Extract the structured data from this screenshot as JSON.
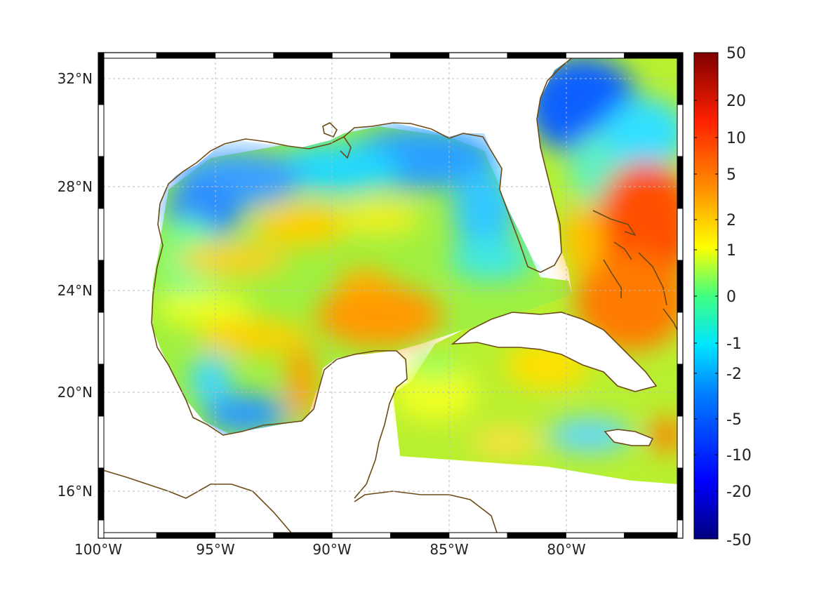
{
  "map": {
    "projection": "Mercator",
    "lon_range": [
      -100,
      -75
    ],
    "lat_range": [
      14,
      33
    ],
    "grid": true,
    "coastline_color": "#6b4a16",
    "frame_style": "alternating black and white border",
    "lon_ticks": [
      {
        "value": -100,
        "label": "100°W"
      },
      {
        "value": -95,
        "label": "95°W"
      },
      {
        "value": -90,
        "label": "90°W"
      },
      {
        "value": -85,
        "label": "85°W"
      },
      {
        "value": -80,
        "label": "80°W"
      }
    ],
    "lat_ticks": [
      {
        "value": 32,
        "label": "32°N"
      },
      {
        "value": 28,
        "label": "28°N"
      },
      {
        "value": 24,
        "label": "24°N"
      },
      {
        "value": 20,
        "label": "20°N"
      },
      {
        "value": 16,
        "label": "16°N"
      }
    ]
  },
  "field": {
    "description_values": [
      {
        "lon": -88.5,
        "lat": 22.8,
        "value": 5
      },
      {
        "lon": -91.5,
        "lat": 26.3,
        "value": 3
      },
      {
        "lon": -77,
        "lat": 25.5,
        "value": 12
      },
      {
        "lon": -78.5,
        "lat": 31.2,
        "value": -8
      },
      {
        "lon": -86.5,
        "lat": 29.0,
        "value": -4
      },
      {
        "lon": -95.5,
        "lat": 27.0,
        "value": -3
      },
      {
        "lon": -94.5,
        "lat": 19.0,
        "value": -3
      },
      {
        "lon": -91.8,
        "lat": 19.6,
        "value": 4
      },
      {
        "lon": -85.0,
        "lat": 21.0,
        "value": 0.5
      },
      {
        "lon": -80.0,
        "lat": 18.0,
        "value": -1
      },
      {
        "lon": -75.5,
        "lat": 18.0,
        "value": 6
      }
    ]
  },
  "colorbar": {
    "colormap": "jet",
    "scale": "symmetric log",
    "ticks": [
      {
        "value": 50,
        "label": "50"
      },
      {
        "value": 20,
        "label": "20"
      },
      {
        "value": 10,
        "label": "10"
      },
      {
        "value": 5,
        "label": "5"
      },
      {
        "value": 2,
        "label": "2"
      },
      {
        "value": 1,
        "label": "1"
      },
      {
        "value": 0,
        "label": "0"
      },
      {
        "value": -1,
        "label": "-1"
      },
      {
        "value": -2,
        "label": "-2"
      },
      {
        "value": -5,
        "label": "-5"
      },
      {
        "value": -10,
        "label": "-10"
      },
      {
        "value": -20,
        "label": "-20"
      },
      {
        "value": -50,
        "label": "-50"
      }
    ]
  }
}
